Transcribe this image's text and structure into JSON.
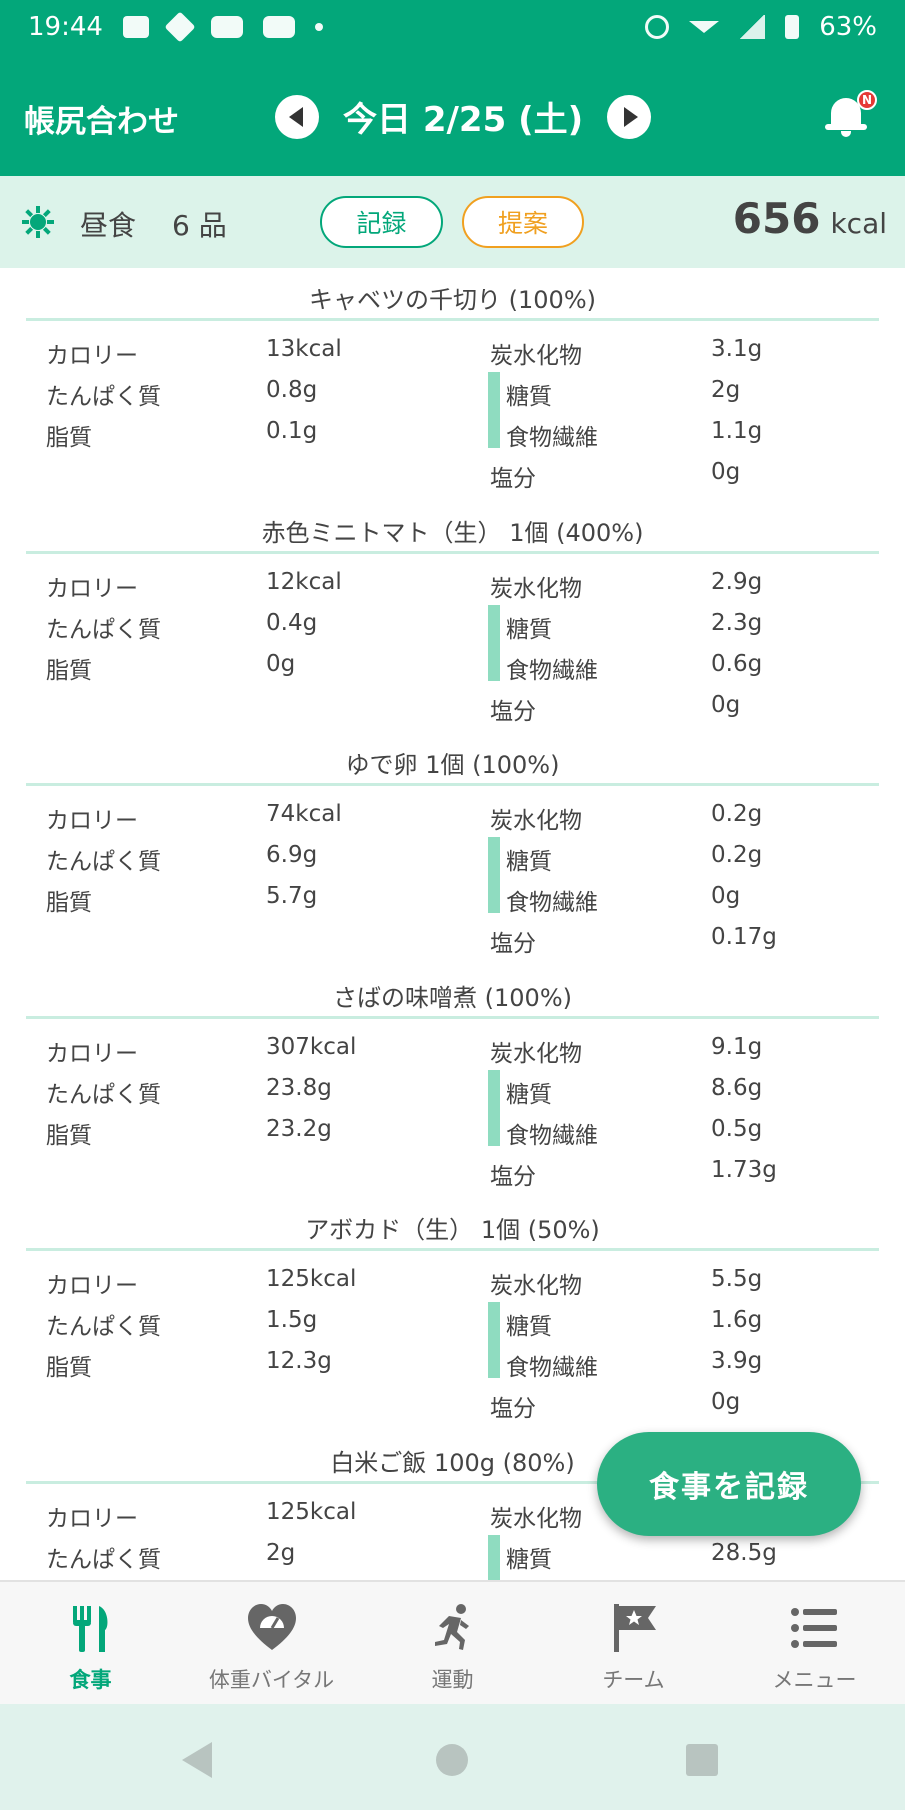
{
  "status_bar": {
    "time": "19:44",
    "battery": "63%"
  },
  "app_bar": {
    "title": "帳尻合わせ",
    "date": "今日 2/25 (土)",
    "notification_badge": "N"
  },
  "meal": {
    "name": "昼食",
    "count": "6 品",
    "record_label": "記録",
    "suggest_label": "提案",
    "total_kcal": "656",
    "kcal_unit": "kcal"
  },
  "labels": {
    "calorie": "カロリー",
    "protein": "たんぱく質",
    "fat": "脂質",
    "carbs": "炭水化物",
    "sugar": "糖質",
    "fiber": "食物繊維",
    "salt": "塩分"
  },
  "foods": [
    {
      "name": "キャベツの千切り (100%)",
      "calorie": "13kcal",
      "protein": "0.8g",
      "fat": "0.1g",
      "carbs": "3.1g",
      "sugar": "2g",
      "fiber": "1.1g",
      "salt": "0g"
    },
    {
      "name": "赤色ミニトマト（生） 1個 (400%)",
      "calorie": "12kcal",
      "protein": "0.4g",
      "fat": "0g",
      "carbs": "2.9g",
      "sugar": "2.3g",
      "fiber": "0.6g",
      "salt": "0g"
    },
    {
      "name": "ゆで卵 1個 (100%)",
      "calorie": "74kcal",
      "protein": "6.9g",
      "fat": "5.7g",
      "carbs": "0.2g",
      "sugar": "0.2g",
      "fiber": "0g",
      "salt": "0.17g"
    },
    {
      "name": "さばの味噌煮 (100%)",
      "calorie": "307kcal",
      "protein": "23.8g",
      "fat": "23.2g",
      "carbs": "9.1g",
      "sugar": "8.6g",
      "fiber": "0.5g",
      "salt": "1.73g"
    },
    {
      "name": "アボカド（生） 1個 (50%)",
      "calorie": "125kcal",
      "protein": "1.5g",
      "fat": "12.3g",
      "carbs": "5.5g",
      "sugar": "1.6g",
      "fiber": "3.9g",
      "salt": "0g"
    },
    {
      "name": "白米ご飯 100g (80%)",
      "calorie": "125kcal",
      "protein": "2g",
      "fat": "",
      "carbs": "",
      "sugar": "28.5g",
      "fiber": "",
      "salt": ""
    }
  ],
  "fab": {
    "label": "食事を記録"
  },
  "bottom_nav": [
    {
      "label": "食事",
      "icon": "fork-knife-icon",
      "active": true
    },
    {
      "label": "体重バイタル",
      "icon": "heart-scale-icon",
      "active": false
    },
    {
      "label": "運動",
      "icon": "runner-icon",
      "active": false
    },
    {
      "label": "チーム",
      "icon": "flag-star-icon",
      "active": false
    },
    {
      "label": "メニュー",
      "icon": "list-menu-icon",
      "active": false
    }
  ],
  "colors": {
    "primary": "#03a77a",
    "accent": "#f0a020",
    "header_bg": "#dcf3ea",
    "rule": "#c9ede0",
    "sugar_bar": "#8fdcc0",
    "fab": "#2bb082"
  }
}
